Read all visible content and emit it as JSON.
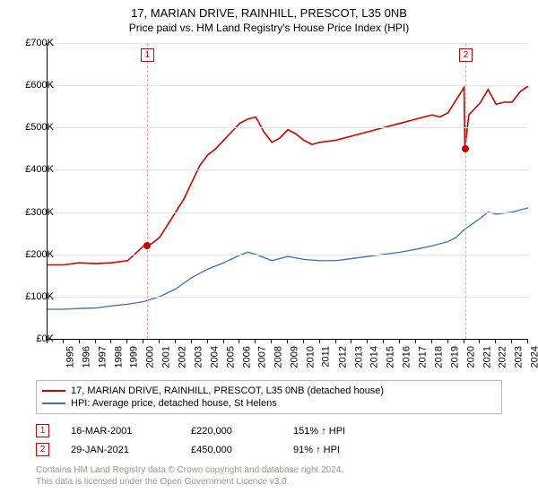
{
  "title_line1": "17, MARIAN DRIVE, RAINHILL, PRESCOT, L35 0NB",
  "title_line2": "Price paid vs. HM Land Registry's House Price Index (HPI)",
  "chart": {
    "type": "line",
    "background_color": "#ffffff",
    "grid_color": "#e7e5e1",
    "axis_color": "#000000",
    "font_size_axis": 11,
    "ylim": [
      0,
      700000
    ],
    "ytick_step": 100000,
    "yticks": [
      "£0K",
      "£100K",
      "£200K",
      "£300K",
      "£400K",
      "£500K",
      "£600K",
      "£700K"
    ],
    "xlim": [
      1995,
      2025
    ],
    "xticks": [
      1995,
      1996,
      1997,
      1998,
      1999,
      2000,
      2001,
      2002,
      2003,
      2004,
      2005,
      2006,
      2007,
      2008,
      2009,
      2010,
      2011,
      2012,
      2013,
      2014,
      2015,
      2016,
      2017,
      2018,
      2019,
      2020,
      2021,
      2022,
      2023,
      2024,
      2025
    ],
    "series": [
      {
        "name": "property",
        "label": "17, MARIAN DRIVE, RAINHILL, PRESCOT, L35 0NB (detached house)",
        "color": "#cc0000",
        "line_width": 1.6,
        "data": [
          [
            1995,
            175000
          ],
          [
            1996,
            175000
          ],
          [
            1997,
            180000
          ],
          [
            1998,
            178000
          ],
          [
            1999,
            180000
          ],
          [
            2000,
            185000
          ],
          [
            2001,
            220000
          ],
          [
            2001.5,
            225000
          ],
          [
            2002,
            240000
          ],
          [
            2002.5,
            270000
          ],
          [
            2003,
            300000
          ],
          [
            2003.5,
            330000
          ],
          [
            2004,
            370000
          ],
          [
            2004.5,
            410000
          ],
          [
            2005,
            435000
          ],
          [
            2005.5,
            450000
          ],
          [
            2006,
            470000
          ],
          [
            2006.5,
            490000
          ],
          [
            2007,
            510000
          ],
          [
            2007.5,
            520000
          ],
          [
            2008,
            525000
          ],
          [
            2008.5,
            490000
          ],
          [
            2009,
            465000
          ],
          [
            2009.5,
            475000
          ],
          [
            2010,
            495000
          ],
          [
            2010.5,
            485000
          ],
          [
            2011,
            470000
          ],
          [
            2011.5,
            460000
          ],
          [
            2012,
            465000
          ],
          [
            2013,
            470000
          ],
          [
            2014,
            480000
          ],
          [
            2015,
            490000
          ],
          [
            2016,
            500000
          ],
          [
            2017,
            510000
          ],
          [
            2018,
            520000
          ],
          [
            2019,
            530000
          ],
          [
            2019.5,
            525000
          ],
          [
            2020,
            535000
          ],
          [
            2020.5,
            565000
          ],
          [
            2021,
            595000
          ],
          [
            2021.05,
            450000
          ],
          [
            2021.3,
            530000
          ],
          [
            2022,
            558000
          ],
          [
            2022.5,
            590000
          ],
          [
            2023,
            555000
          ],
          [
            2023.5,
            560000
          ],
          [
            2024,
            560000
          ],
          [
            2024.5,
            585000
          ],
          [
            2025,
            598000
          ]
        ]
      },
      {
        "name": "hpi",
        "label": "HPI: Average price, detached house, St Helens",
        "color": "#3b6fb6",
        "line_width": 1.3,
        "data": [
          [
            1995,
            70000
          ],
          [
            1996,
            70000
          ],
          [
            1997,
            72000
          ],
          [
            1998,
            73000
          ],
          [
            1999,
            78000
          ],
          [
            2000,
            82000
          ],
          [
            2001,
            88000
          ],
          [
            2002,
            100000
          ],
          [
            2003,
            118000
          ],
          [
            2004,
            145000
          ],
          [
            2005,
            165000
          ],
          [
            2006,
            180000
          ],
          [
            2007,
            198000
          ],
          [
            2007.5,
            205000
          ],
          [
            2008,
            200000
          ],
          [
            2009,
            185000
          ],
          [
            2010,
            195000
          ],
          [
            2011,
            188000
          ],
          [
            2012,
            185000
          ],
          [
            2013,
            185000
          ],
          [
            2014,
            190000
          ],
          [
            2015,
            195000
          ],
          [
            2016,
            200000
          ],
          [
            2017,
            205000
          ],
          [
            2018,
            212000
          ],
          [
            2019,
            220000
          ],
          [
            2020,
            230000
          ],
          [
            2020.5,
            240000
          ],
          [
            2021,
            258000
          ],
          [
            2022,
            285000
          ],
          [
            2022.5,
            300000
          ],
          [
            2023,
            295000
          ],
          [
            2024,
            300000
          ],
          [
            2025,
            310000
          ]
        ]
      }
    ],
    "event_lines": [
      {
        "x": 2001.2,
        "label": "1",
        "color": "#f39b9b"
      },
      {
        "x": 2021.08,
        "label": "2",
        "color": "#f39b9b"
      }
    ],
    "markers": [
      {
        "x": 2001.2,
        "y": 220000,
        "color": "#cc0000"
      },
      {
        "x": 2021.08,
        "y": 450000,
        "color": "#cc0000"
      }
    ]
  },
  "legend": {
    "series1_label": "17, MARIAN DRIVE, RAINHILL, PRESCOT, L35 0NB (detached house)",
    "series1_color": "#cc0000",
    "series2_label": "HPI: Average price, detached house, St Helens",
    "series2_color": "#3b6fb6"
  },
  "transactions": [
    {
      "n": "1",
      "date": "16-MAR-2001",
      "price": "£220,000",
      "pct": "151% ↑ HPI"
    },
    {
      "n": "2",
      "date": "29-JAN-2021",
      "price": "£450,000",
      "pct": "91% ↑ HPI"
    }
  ],
  "footer_line1": "Contains HM Land Registry data © Crown copyright and database right 2024.",
  "footer_line2": "This data is licensed under the Open Government Licence v3.0."
}
